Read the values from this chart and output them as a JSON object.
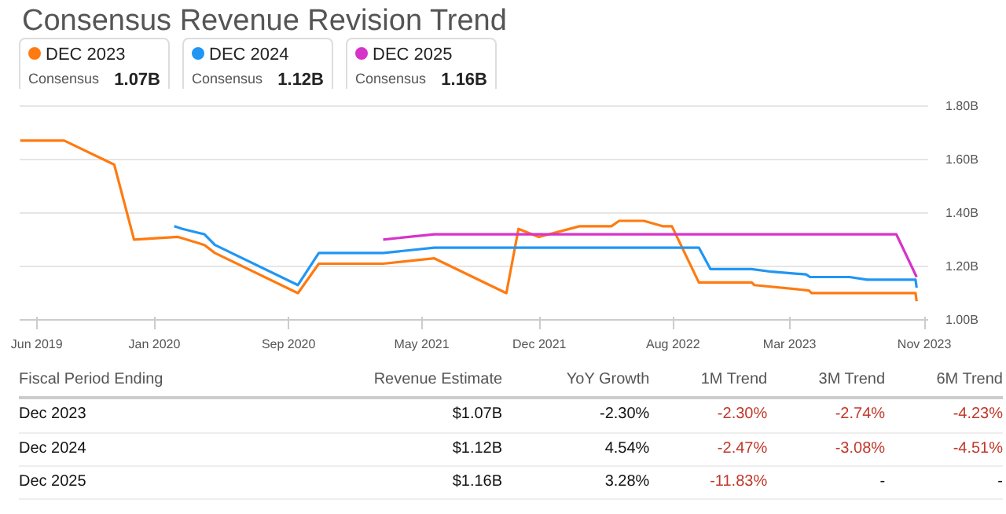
{
  "chart_data": [
    {
      "type": "line",
      "title": "Consensus Revenue Revision Trend",
      "legend": "top left",
      "grid": "y",
      "line_style": "solid",
      "marker": "none",
      "xlim": [
        "2019-05-01",
        "2023-11-08"
      ],
      "ylim": [
        1.0,
        1.84
      ],
      "xticks": [
        {
          "value": "2019-06-01",
          "label": "Jun 2019"
        },
        {
          "value": "2020-01-01",
          "label": "Jan 2020"
        },
        {
          "value": "2020-09-01",
          "label": "Sep 2020"
        },
        {
          "value": "2021-05-01",
          "label": "May 2021"
        },
        {
          "value": "2021-12-01",
          "label": "Dec 2021"
        },
        {
          "value": "2022-08-01",
          "label": "Aug 2022"
        },
        {
          "value": "2023-03-01",
          "label": "Mar 2023"
        },
        {
          "value": "2023-11-01",
          "label": "Nov 2023"
        }
      ],
      "yticks": [
        {
          "value": 1.0,
          "label": "1.00B"
        },
        {
          "value": 1.2,
          "label": "1.20B"
        },
        {
          "value": 1.4,
          "label": "1.40B"
        },
        {
          "value": 1.6,
          "label": "1.60B"
        },
        {
          "value": 1.8,
          "label": "1.80B"
        }
      ],
      "annotations": [
        "1.07B",
        "Consensus",
        "1.12B",
        "Consensus",
        "1.16B",
        "Consensus"
      ],
      "series": [
        {
          "name": "DEC 2023",
          "color": "#ff7a10",
          "x": [
            "2019-05-02",
            "2019-07-21",
            "2019-10-20",
            "2019-11-25",
            "2020-02-13",
            "2020-04-01",
            "2020-04-20",
            "2020-09-18",
            "2020-10-26",
            "2021-02-20",
            "2021-05-24",
            "2021-10-02",
            "2021-10-24",
            "2021-11-30",
            "2022-02-12",
            "2022-04-11",
            "2022-04-25",
            "2022-06-09",
            "2022-07-13",
            "2022-07-30",
            "2022-09-17",
            "2022-12-22",
            "2022-12-27",
            "2023-04-05",
            "2023-04-10",
            "2023-07-18",
            "2023-10-16",
            "2023-10-18"
          ],
          "values": [
            1.67,
            1.67,
            1.58,
            1.3,
            1.31,
            1.28,
            1.25,
            1.1,
            1.21,
            1.21,
            1.23,
            1.1,
            1.34,
            1.31,
            1.35,
            1.35,
            1.37,
            1.37,
            1.35,
            1.35,
            1.14,
            1.14,
            1.13,
            1.11,
            1.1,
            1.1,
            1.1,
            1.07
          ]
        },
        {
          "name": "DEC 2024",
          "color": "#2196f3",
          "x": [
            "2020-02-06",
            "2020-02-21",
            "2020-04-01",
            "2020-04-20",
            "2020-09-18",
            "2020-10-26",
            "2021-02-20",
            "2021-05-24",
            "2022-09-17",
            "2022-10-08",
            "2022-12-22",
            "2023-01-27",
            "2023-03-31",
            "2023-04-07",
            "2023-06-18",
            "2023-07-20",
            "2023-10-16",
            "2023-10-18"
          ],
          "values": [
            1.35,
            1.34,
            1.32,
            1.28,
            1.13,
            1.25,
            1.25,
            1.27,
            1.27,
            1.19,
            1.19,
            1.18,
            1.17,
            1.16,
            1.16,
            1.15,
            1.15,
            1.12
          ]
        },
        {
          "name": "DEC 2025",
          "color": "#d633c9",
          "x": [
            "2021-02-20",
            "2021-05-24",
            "2023-09-11",
            "2023-10-18"
          ],
          "values": [
            1.3,
            1.32,
            1.32,
            1.16
          ]
        }
      ]
    },
    {
      "type": "other",
      "annotations": [
        "Fiscal Period Ending",
        "Revenue Estimate",
        "YoY Growth",
        "1M Trend",
        "3M Trend",
        "6M Trend",
        "Dec 2023",
        "$1.07B",
        "-2.30%",
        "-2.30%",
        "-2.74%",
        "-4.23%",
        "Dec 2024",
        "$1.12B",
        "4.54%",
        "-2.47%",
        "-3.08%",
        "-4.51%",
        "Dec 2025",
        "$1.16B",
        "3.28%",
        "-11.83%",
        "-",
        "-"
      ]
    }
  ]
}
